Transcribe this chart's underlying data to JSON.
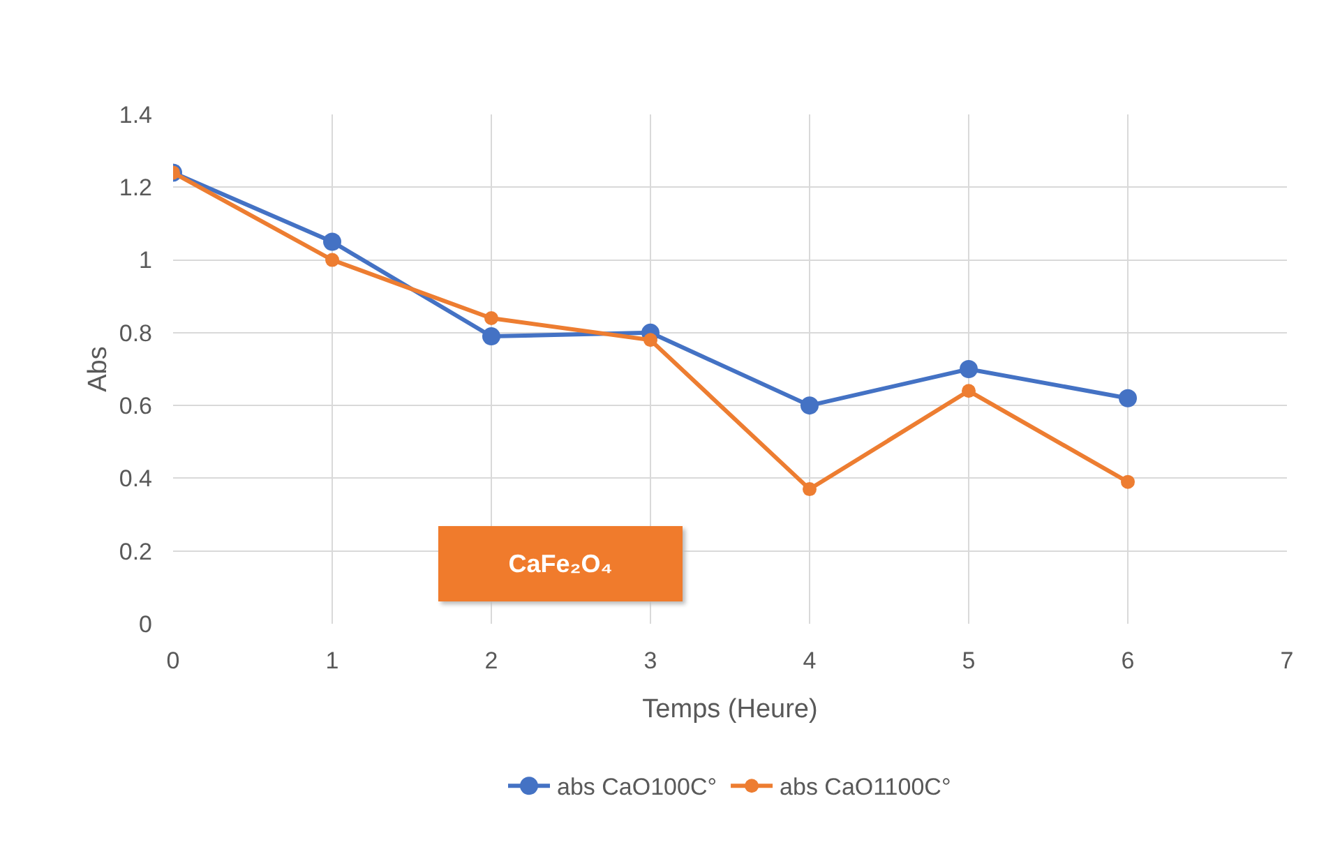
{
  "chart_data": {
    "type": "line",
    "xlabel": "Temps (Heure)",
    "ylabel": "Abs",
    "x": [
      0,
      1,
      2,
      3,
      4,
      5,
      6
    ],
    "series": [
      {
        "name": "abs CaO100C°",
        "color": "#4472c4",
        "values": [
          1.24,
          1.05,
          0.79,
          0.8,
          0.6,
          0.7,
          0.62
        ]
      },
      {
        "name": "abs CaO1100C°",
        "color": "#ed7d31",
        "values": [
          1.24,
          1.0,
          0.84,
          0.78,
          0.37,
          0.64,
          0.39
        ]
      }
    ],
    "xlim": [
      0,
      7
    ],
    "xticks": [
      0,
      1,
      2,
      3,
      4,
      5,
      6,
      7
    ],
    "ylim": [
      0,
      1.4
    ],
    "yticks": [
      0,
      0.2,
      0.4,
      0.6,
      0.8,
      1,
      1.2,
      1.4
    ],
    "annotations": [
      "CaFe₂O₄"
    ],
    "grid": true,
    "legend": "bottom",
    "marker": "circle",
    "line_style": "solid"
  }
}
